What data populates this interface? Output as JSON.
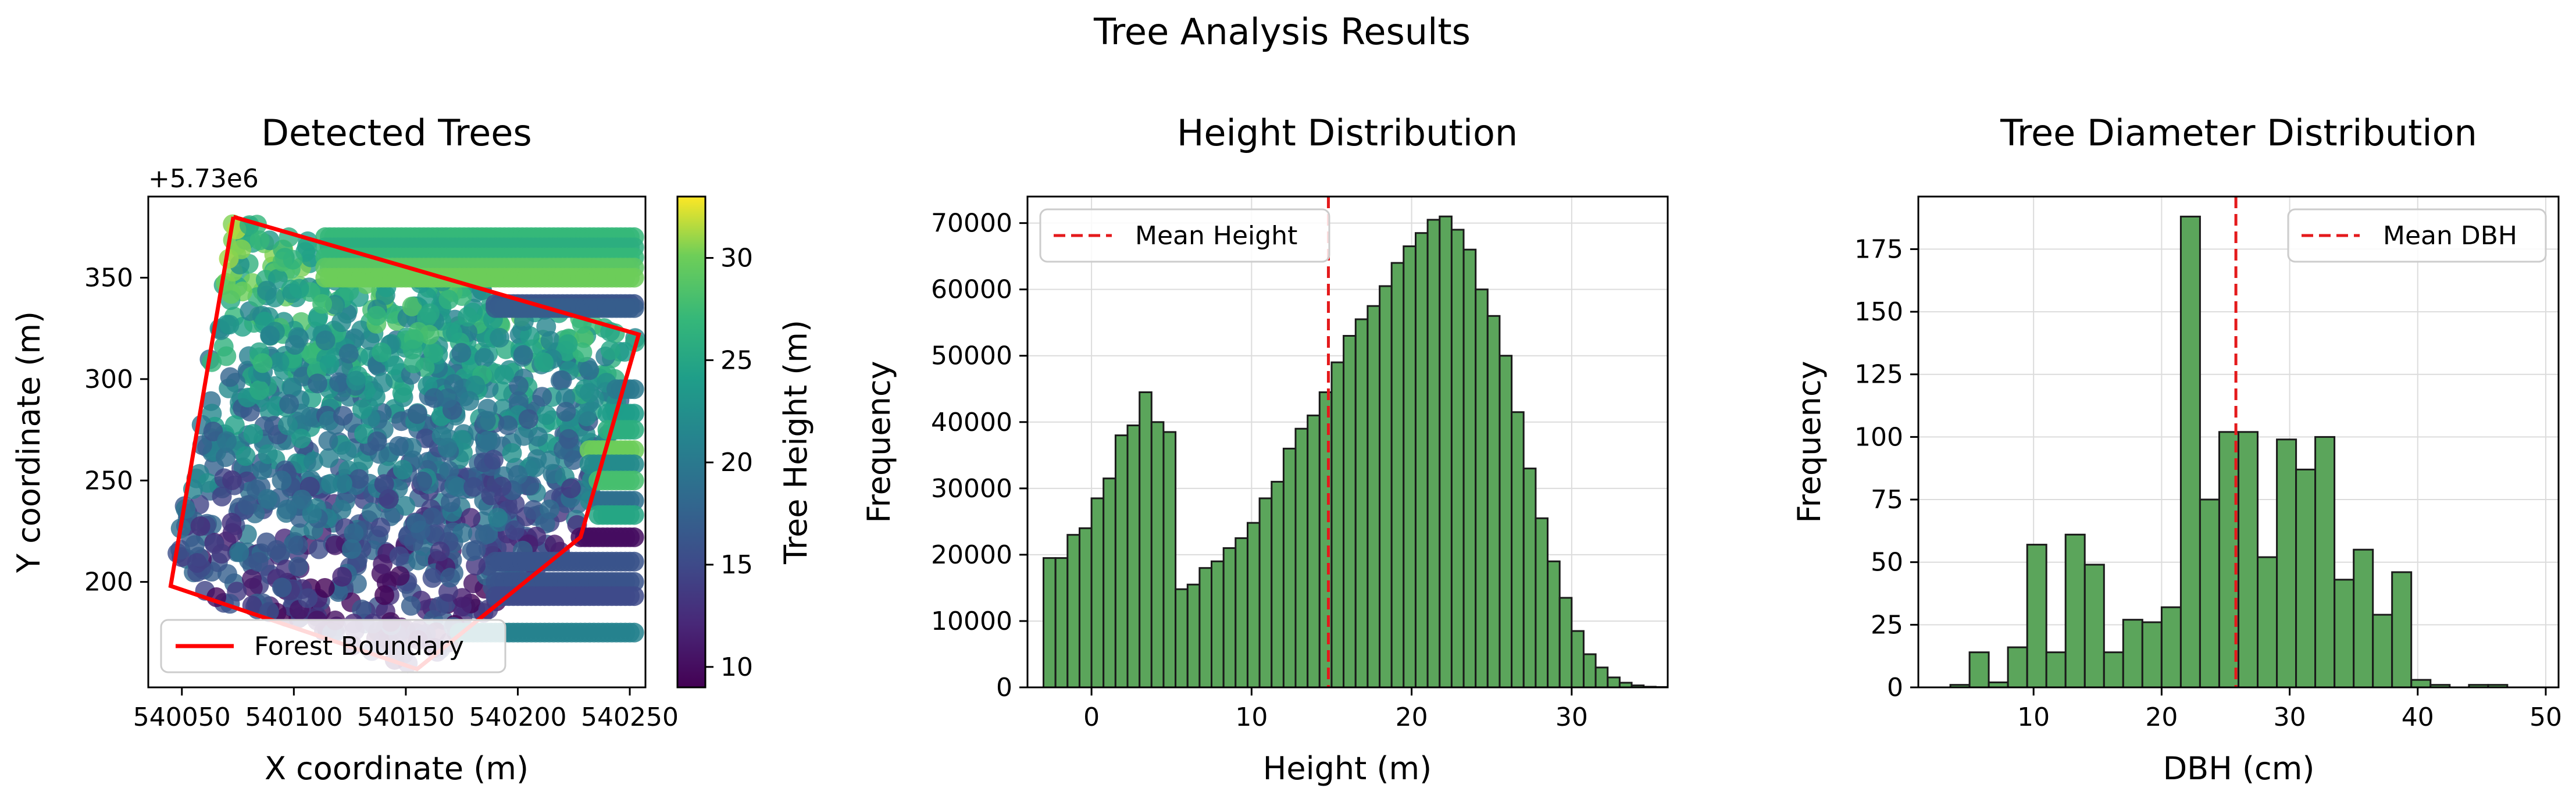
{
  "figure_title": "Tree Analysis Results",
  "chart_data": [
    {
      "type": "scatter",
      "title": "Detected Trees",
      "xlabel": "X coordinate (m)",
      "ylabel": "Y coordinate (m)",
      "offset_label": "+5.73e6",
      "xlim": [
        540035,
        540257
      ],
      "ylim": [
        148,
        390
      ],
      "x_ticks": [
        540050,
        540100,
        540150,
        540200,
        540250
      ],
      "x_tick_labels": [
        "540050",
        "540100",
        "540150",
        "540200",
        "540250"
      ],
      "y_ticks": [
        200,
        250,
        300,
        350
      ],
      "y_tick_labels": [
        "200",
        "250",
        "300",
        "350"
      ],
      "colorbar": {
        "label": "Tree Height (m)",
        "colormap": "viridis",
        "range": [
          9,
          33
        ],
        "ticks": [
          10,
          15,
          20,
          25,
          30
        ],
        "tick_labels": [
          "10",
          "15",
          "20",
          "25",
          "30"
        ]
      },
      "boundary": {
        "name": "Forest Boundary",
        "color": "#ff0000",
        "points": [
          [
            540073,
            380
          ],
          [
            540254,
            322
          ],
          [
            540228,
            222
          ],
          [
            540155,
            157
          ],
          [
            540045,
            198
          ],
          [
            540073,
            380
          ]
        ]
      },
      "rows": [
        {
          "y": 370,
          "x0": 540114,
          "x1": 540252,
          "height": 27
        },
        {
          "y": 365,
          "x0": 540114,
          "x1": 540252,
          "height": 26
        },
        {
          "y": 360,
          "x0": 540114,
          "x1": 540252,
          "height": 27
        },
        {
          "y": 355,
          "x0": 540114,
          "x1": 540252,
          "height": 29
        },
        {
          "y": 350,
          "x0": 540114,
          "x1": 540252,
          "height": 30
        },
        {
          "y": 337,
          "x0": 540190,
          "x1": 540252,
          "height": 16
        },
        {
          "y": 335,
          "x0": 540190,
          "x1": 540252,
          "height": 17
        },
        {
          "y": 295,
          "x0": 540244,
          "x1": 540252,
          "height": 20
        },
        {
          "y": 283,
          "x0": 540240,
          "x1": 540252,
          "height": 24
        },
        {
          "y": 275,
          "x0": 540240,
          "x1": 540252,
          "height": 26
        },
        {
          "y": 265,
          "x0": 540232,
          "x1": 540252,
          "height": 30
        },
        {
          "y": 258,
          "x0": 540232,
          "x1": 540252,
          "height": 22
        },
        {
          "y": 250,
          "x0": 540236,
          "x1": 540252,
          "height": 28
        },
        {
          "y": 240,
          "x0": 540236,
          "x1": 540252,
          "height": 19
        },
        {
          "y": 233,
          "x0": 540236,
          "x1": 540252,
          "height": 25
        },
        {
          "y": 222,
          "x0": 540228,
          "x1": 540252,
          "height": 10
        },
        {
          "y": 210,
          "x0": 540190,
          "x1": 540252,
          "height": 16
        },
        {
          "y": 200,
          "x0": 540190,
          "x1": 540252,
          "height": 16
        },
        {
          "y": 193,
          "x0": 540190,
          "x1": 540252,
          "height": 15
        },
        {
          "y": 175,
          "x0": 540174,
          "x1": 540252,
          "height": 21
        }
      ],
      "legend": {
        "position": "lower-left",
        "entries": [
          "Forest Boundary"
        ]
      }
    },
    {
      "type": "bar",
      "title": "Height Distribution",
      "xlabel": "Height (m)",
      "ylabel": "Frequency",
      "xlim": [
        -4,
        36
      ],
      "ylim": [
        0,
        74000
      ],
      "x_ticks": [
        0,
        10,
        20,
        30
      ],
      "x_tick_labels": [
        "0",
        "10",
        "20",
        "30"
      ],
      "y_ticks": [
        0,
        10000,
        20000,
        30000,
        40000,
        50000,
        60000,
        70000
      ],
      "y_tick_labels": [
        "0",
        "10000",
        "20000",
        "30000",
        "40000",
        "50000",
        "60000",
        "70000"
      ],
      "bin_start": -3,
      "bin_width": 0.75,
      "values": [
        19500,
        19500,
        23000,
        24000,
        28500,
        31500,
        38000,
        39500,
        44500,
        40000,
        38500,
        14800,
        15500,
        18000,
        19000,
        21000,
        22500,
        24800,
        28500,
        31000,
        36000,
        39000,
        41000,
        44500,
        49000,
        53000,
        55500,
        57500,
        60500,
        64000,
        66500,
        68500,
        70500,
        71000,
        69000,
        66000,
        60000,
        56000,
        50000,
        41500,
        33000,
        25500,
        19000,
        13500,
        8500,
        5000,
        3000,
        1500,
        700,
        300,
        100,
        50
      ],
      "mean": 14.8,
      "mean_label": "Mean Height",
      "bar_color": "#5ba55b",
      "legend": {
        "position": "top-left",
        "entries": [
          "Mean Height"
        ]
      }
    },
    {
      "type": "bar",
      "title": "Tree Diameter Distribution",
      "xlabel": "DBH (cm)",
      "ylabel": "Frequency",
      "xlim": [
        1,
        51
      ],
      "ylim": [
        0,
        196
      ],
      "x_ticks": [
        10,
        20,
        30,
        40,
        50
      ],
      "x_tick_labels": [
        "10",
        "20",
        "30",
        "40",
        "50"
      ],
      "y_ticks": [
        0,
        25,
        50,
        75,
        100,
        125,
        150,
        175
      ],
      "y_tick_labels": [
        "0",
        "25",
        "50",
        "75",
        "100",
        "125",
        "150",
        "175"
      ],
      "bin_start": 3.5,
      "bin_width": 1.5,
      "values": [
        1,
        14,
        2,
        16,
        57,
        14,
        61,
        49,
        14,
        27,
        26,
        32,
        188,
        75,
        102,
        102,
        52,
        99,
        87,
        100,
        43,
        55,
        29,
        46,
        3,
        1,
        0,
        1,
        1,
        0,
        0
      ],
      "mean": 25.8,
      "mean_label": "Mean DBH",
      "bar_color": "#5ba55b",
      "legend": {
        "position": "top-right",
        "entries": [
          "Mean DBH"
        ]
      }
    }
  ]
}
